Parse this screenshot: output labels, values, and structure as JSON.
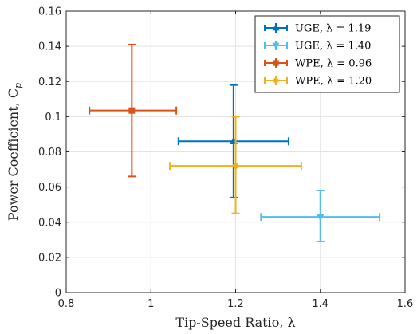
{
  "chart_data": {
    "type": "scatter",
    "xlabel": "Tip-Speed Ratio, λ",
    "ylabel": "Power Coefficient, C",
    "ylabel_sub": "p",
    "xlim": [
      0.8,
      1.6
    ],
    "ylim": [
      0,
      0.16
    ],
    "x_ticks": [
      0.8,
      1,
      1.2,
      1.4,
      1.6
    ],
    "x_tick_labels": [
      "0.8",
      "1",
      "1.2",
      "1.4",
      "1.6"
    ],
    "y_ticks": [
      0,
      0.02,
      0.04,
      0.06,
      0.08,
      0.1,
      0.12,
      0.14,
      0.16
    ],
    "y_tick_labels": [
      "0",
      "0.02",
      "0.04",
      "0.06",
      "0.08",
      "0.1",
      "0.12",
      "0.14",
      "0.16"
    ],
    "grid": true,
    "legend_position": "top-right",
    "series": [
      {
        "name": "UGE, λ = 1.19",
        "marker": "triangle-up",
        "color": "#0072BD",
        "x": 1.195,
        "y": 0.086,
        "xerr": [
          1.065,
          1.325
        ],
        "yerr": [
          0.054,
          0.118
        ]
      },
      {
        "name": "UGE, λ = 1.40",
        "marker": "triangle-down",
        "color": "#4DBEEE",
        "x": 1.4,
        "y": 0.043,
        "xerr": [
          1.26,
          1.54
        ],
        "yerr": [
          0.029,
          0.058
        ]
      },
      {
        "name": "WPE, λ = 0.96",
        "marker": "square",
        "color": "#D95319",
        "x": 0.955,
        "y": 0.1035,
        "xerr": [
          0.855,
          1.06
        ],
        "yerr": [
          0.066,
          0.141
        ]
      },
      {
        "name": "WPE, λ = 1.20",
        "marker": "diamond",
        "color": "#EDB120",
        "x": 1.2,
        "y": 0.072,
        "xerr": [
          1.045,
          1.355
        ],
        "yerr": [
          0.045,
          0.1
        ]
      }
    ]
  }
}
